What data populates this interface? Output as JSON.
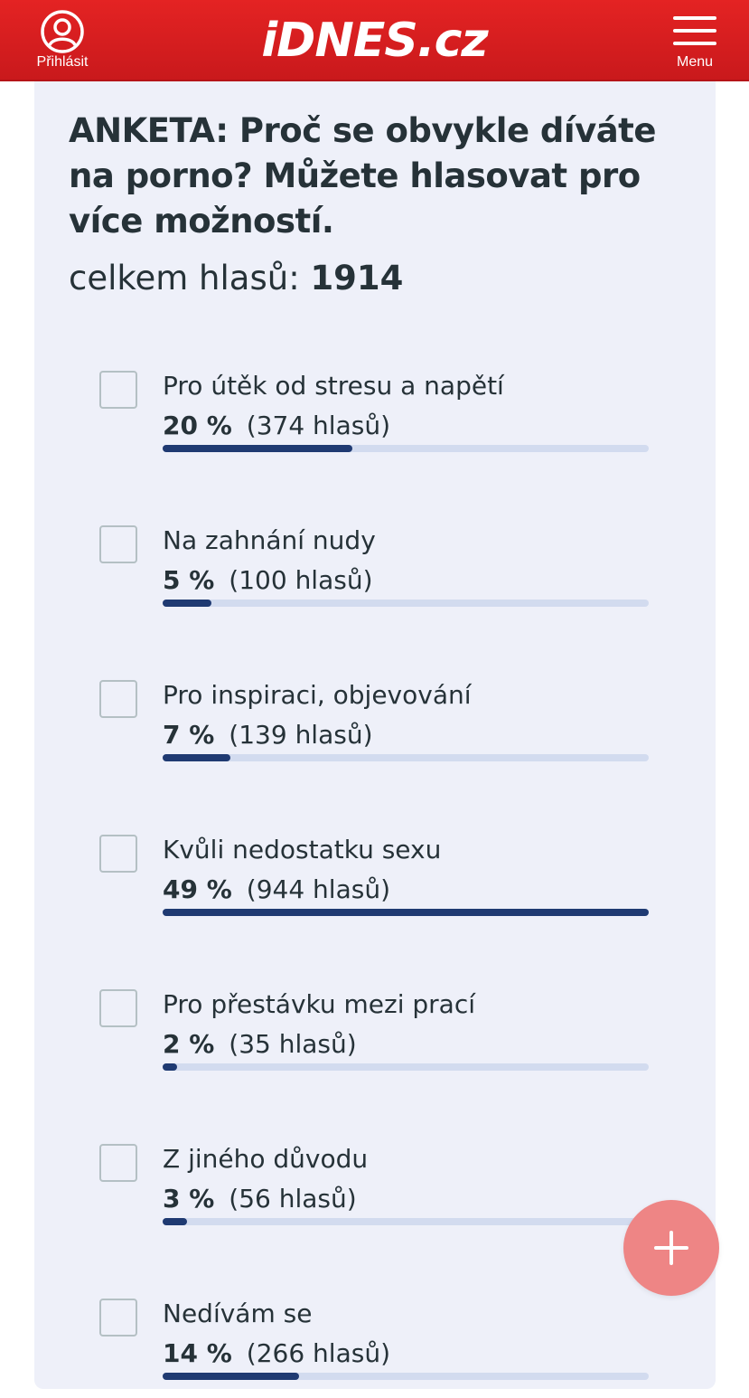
{
  "header": {
    "login_label": "Přihlásit",
    "logo_text": "iDNES.cz",
    "menu_label": "Menu",
    "icons": {
      "login": "user-circle-icon",
      "menu": "hamburger-menu-icon"
    },
    "background_color": "#d91d20"
  },
  "poll": {
    "title": "ANKETA: Proč se obvykle díváte na porno? Můžete hlasovat pro více možností.",
    "total_label": "celkem hlasů:",
    "total_value": "1914",
    "options": [
      {
        "label": "Pro útěk od stresu a napětí",
        "percent": "20 %",
        "votes": "(374 hlasů)",
        "share": 0.39
      },
      {
        "label": "Na zahnání nudy",
        "percent": "5 %",
        "votes": "(100 hlasů)",
        "share": 0.1
      },
      {
        "label": "Pro inspiraci, objevování",
        "percent": "7 %",
        "votes": "(139 hlasů)",
        "share": 0.14
      },
      {
        "label": "Kvůli nedostatku sexu",
        "percent": "49 %",
        "votes": "(944 hlasů)",
        "share": 1.0
      },
      {
        "label": "Pro přestávku mezi prací",
        "percent": "2 %",
        "votes": "(35 hlasů)",
        "share": 0.03
      },
      {
        "label": "Z jiného důvodu",
        "percent": "3 %",
        "votes": "(56 hlasů)",
        "share": 0.05
      },
      {
        "label": "Nedívám se",
        "percent": "14 %",
        "votes": "(266 hlasů)",
        "share": 0.28
      }
    ],
    "colors": {
      "bar_fill": "#1f3a72",
      "bar_track": "#d2dbef",
      "card_background": "#eef0f9"
    }
  },
  "fab": {
    "icon": "plus-icon",
    "color": "#ee8585"
  }
}
